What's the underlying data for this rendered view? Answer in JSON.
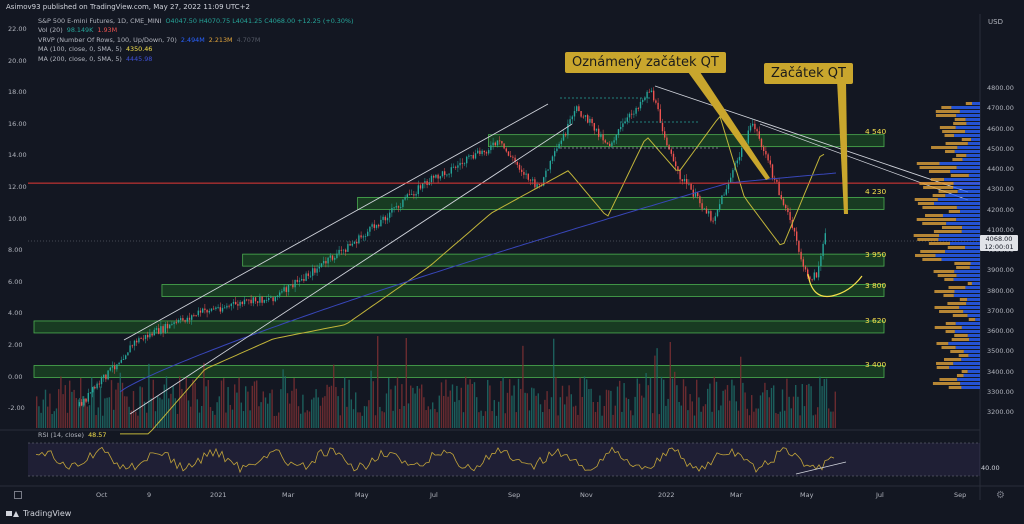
{
  "header": {
    "publish_info": "Asimov93 published on TradingView.com, May 27, 2022 11:09 UTC+2",
    "brand": "TradingView"
  },
  "legend": {
    "symbol": "S&P 500 E-mini Futures, 1D, CME_MINI",
    "ohlc": "O4047.50  H4070.75  L4041.25  C4068.00  +12.25 (+0.30%)",
    "vol_name": "Vol (20)",
    "vol_v1": "98.149K",
    "vol_v2": "1.93M",
    "vrvp_name": "VRVP (Number Of Rows, 100, Up/Down, 70)",
    "vrvp_v1": "2.494M",
    "vrvp_v2": "2.213M",
    "vrvp_v3": "4.707M",
    "ma100_name": "MA (100, close, 0, SMA, 5)",
    "ma100_value": "4350.46",
    "ma200_name": "MA (200, close, 0, SMA, 5)",
    "ma200_value": "4445.98",
    "rsi_name": "RSI (14, close)",
    "rsi_value": "48.57"
  },
  "callouts": {
    "announced": "Oznámený začátek QT",
    "start": "Začátek QT"
  },
  "annotations": {
    "l4540": "4 540",
    "l4230": "4 230",
    "l3950": "3 950",
    "l3800": "3 800",
    "l3620": "3 620",
    "l3400": "3 400"
  },
  "right_axis": {
    "unit": "USD",
    "ticks": [
      "4800.00",
      "4700.00",
      "4600.00",
      "4500.00",
      "4400.00",
      "4300.00",
      "4200.00",
      "4100.00",
      "4000.00",
      "3900.00",
      "3800.00",
      "3700.00",
      "3600.00",
      "3500.00",
      "3400.00",
      "3300.00",
      "3200.00"
    ],
    "price_tag_value": "4068.00",
    "price_tag_time": "12:00:01",
    "rsi_tick": "40.00"
  },
  "left_axis": {
    "ticks": [
      "22.00",
      "20.00",
      "18.00",
      "16.00",
      "14.00",
      "12.00",
      "10.00",
      "8.00",
      "6.00",
      "4.00",
      "2.00",
      "0.00",
      "-2.00"
    ]
  },
  "x_axis": {
    "ticks": [
      "Oct",
      "9",
      "2021",
      "Mar",
      "May",
      "Jul",
      "Sep",
      "Nov",
      "2022",
      "Mar",
      "May",
      "Jul",
      "Sep"
    ]
  },
  "colors": {
    "background": "#131722",
    "up": "#26a69a",
    "down": "#ef5350",
    "zone_fill": "#1e5a23",
    "zone_border": "#4caf50",
    "ma100": "#c2b53a",
    "ma200": "#3846b9",
    "callout_bg": "#c9a62d",
    "annotation_text": "#f5e04b",
    "horizontal_red": "#e53935",
    "vrvp_up": "#2962ff",
    "vrvp_down": "#e0a33b",
    "rsi_line": "#c2a43a"
  },
  "chart_data": {
    "type": "candlestick",
    "title": "S&P 500 E-mini Futures, 1D, CME_MINI",
    "y_unit": "USD",
    "ylim": [
      3150,
      4880
    ],
    "last_close": 4068.0,
    "key_points": [
      {
        "x": "2020-09-24",
        "close": 3230
      },
      {
        "x": "2020-11-09",
        "close": 3550
      },
      {
        "x": "2021-01-04",
        "close": 3700
      },
      {
        "x": "2021-03-04",
        "close": 3770
      },
      {
        "x": "2021-05-12",
        "close": 4060
      },
      {
        "x": "2021-07-01",
        "close": 4320
      },
      {
        "x": "2021-09-02",
        "close": 4530
      },
      {
        "x": "2021-10-04",
        "close": 4300
      },
      {
        "x": "2021-11-05",
        "close": 4700
      },
      {
        "x": "2021-12-01",
        "close": 4520
      },
      {
        "x": "2022-01-04",
        "close": 4800
      },
      {
        "x": "2022-01-24",
        "close": 4400
      },
      {
        "x": "2022-02-24",
        "close": 4150
      },
      {
        "x": "2022-03-29",
        "close": 4630
      },
      {
        "x": "2022-04-29",
        "close": 4130
      },
      {
        "x": "2022-05-12",
        "close": 3860
      },
      {
        "x": "2022-05-20",
        "close": 3880
      },
      {
        "x": "2022-05-27",
        "close": 4068
      }
    ],
    "support_resistance_levels": [
      4540,
      4230,
      3950,
      3800,
      3620,
      3400
    ],
    "horizontal_line": 4330,
    "moving_averages": [
      {
        "name": "MA 100",
        "last": 4350.46
      },
      {
        "name": "MA 200",
        "last": 4445.98
      }
    ],
    "rsi": {
      "period": 14,
      "last": 48.57
    }
  }
}
